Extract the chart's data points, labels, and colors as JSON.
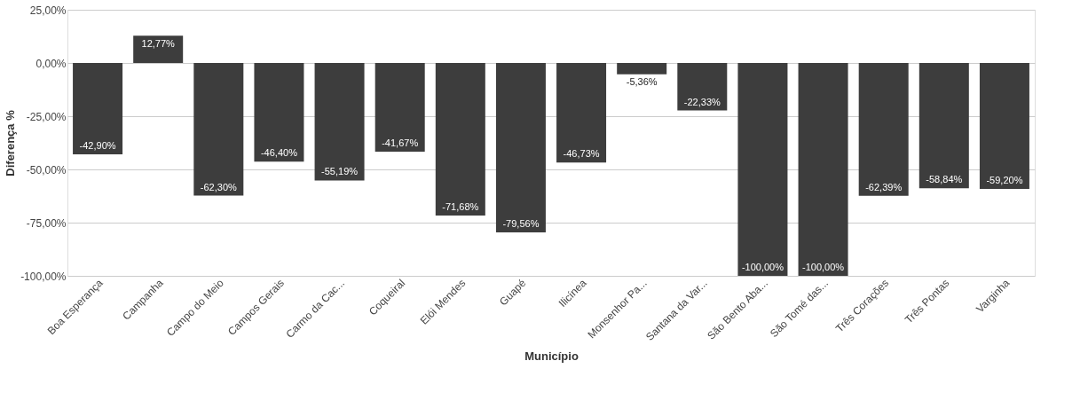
{
  "chart_data": {
    "type": "bar",
    "xlabel": "Município",
    "ylabel": "Diferença %",
    "categories": [
      "Boa Esperança",
      "Campanha",
      "Campo do Meio",
      "Campos Gerais",
      "Carmo da Cac...",
      "Coqueiral",
      "Elói Mendes",
      "Guapé",
      "Ilicínea",
      "Monsenhor Pa...",
      "Santana da Var...",
      "São Bento Aba...",
      "São Tomé das...",
      "Três Corações",
      "Três Pontas",
      "Varginha"
    ],
    "values": [
      -42.9,
      12.77,
      -62.3,
      -46.4,
      -55.19,
      -41.67,
      -71.68,
      -79.56,
      -46.73,
      -5.36,
      -22.33,
      -100.0,
      -100.0,
      -62.39,
      -58.84,
      -59.2
    ],
    "value_labels": [
      "-42,90%",
      "12,77%",
      "-62,30%",
      "-46,40%",
      "-55,19%",
      "-41,67%",
      "-71,68%",
      "-79,56%",
      "-46,73%",
      "-5,36%",
      "-22,33%",
      "-100,00%",
      "-100,00%",
      "-62,39%",
      "-58,84%",
      "-59,20%"
    ],
    "color": "#3d3d3d",
    "ylim": [
      -100,
      25
    ],
    "yticks": [
      {
        "value": 25,
        "label": "25,00%"
      },
      {
        "value": 0,
        "label": "0,00%"
      },
      {
        "value": -25,
        "label": "-25,00%"
      },
      {
        "value": -50,
        "label": "-50,00%"
      },
      {
        "value": -75,
        "label": "-75,00%"
      },
      {
        "value": -100,
        "label": "-100,00%"
      }
    ],
    "grid": "y"
  }
}
